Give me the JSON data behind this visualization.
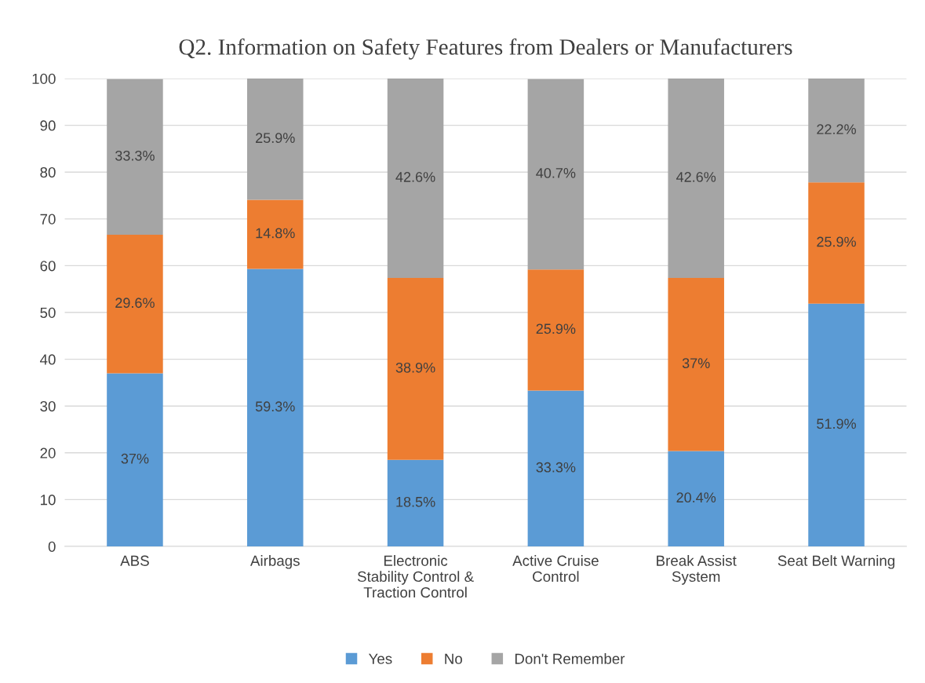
{
  "chart_data": {
    "type": "bar",
    "title": "Q2. Information on Safety Features from Dealers or Manufacturers",
    "categories": [
      "ABS",
      "Airbags",
      "Electronic\nStability Control &\nTraction Control",
      "Active Cruise\nControl",
      "Break Assist\nSystem",
      "Seat Belt Warning"
    ],
    "stacked": true,
    "series": [
      {
        "name": "Yes",
        "color": "#5b9bd5",
        "values": [
          37,
          59.3,
          18.5,
          33.3,
          20.4,
          51.9
        ],
        "value_labels": [
          "37%",
          "59.3%",
          "18.5%",
          "33.3%",
          "20.4%",
          "51.9%"
        ]
      },
      {
        "name": "No",
        "color": "#ed7d31",
        "values": [
          29.6,
          14.8,
          38.9,
          25.9,
          37,
          25.9
        ],
        "value_labels": [
          "29.6%",
          "14.8%",
          "38.9%",
          "25.9%",
          "37%",
          "25.9%"
        ]
      },
      {
        "name": "Don't Remember",
        "color": "#a5a5a5",
        "values": [
          33.3,
          25.9,
          42.6,
          40.7,
          42.6,
          22.2
        ],
        "value_labels": [
          "33.3%",
          "25.9%",
          "42.6%",
          "40.7%",
          "42.6%",
          "22.2%"
        ]
      }
    ],
    "ylim": [
      0,
      100
    ],
    "yticks": [
      0,
      10,
      20,
      30,
      40,
      50,
      60,
      70,
      80,
      90,
      100
    ],
    "grid": "y",
    "legend": "bottom"
  }
}
